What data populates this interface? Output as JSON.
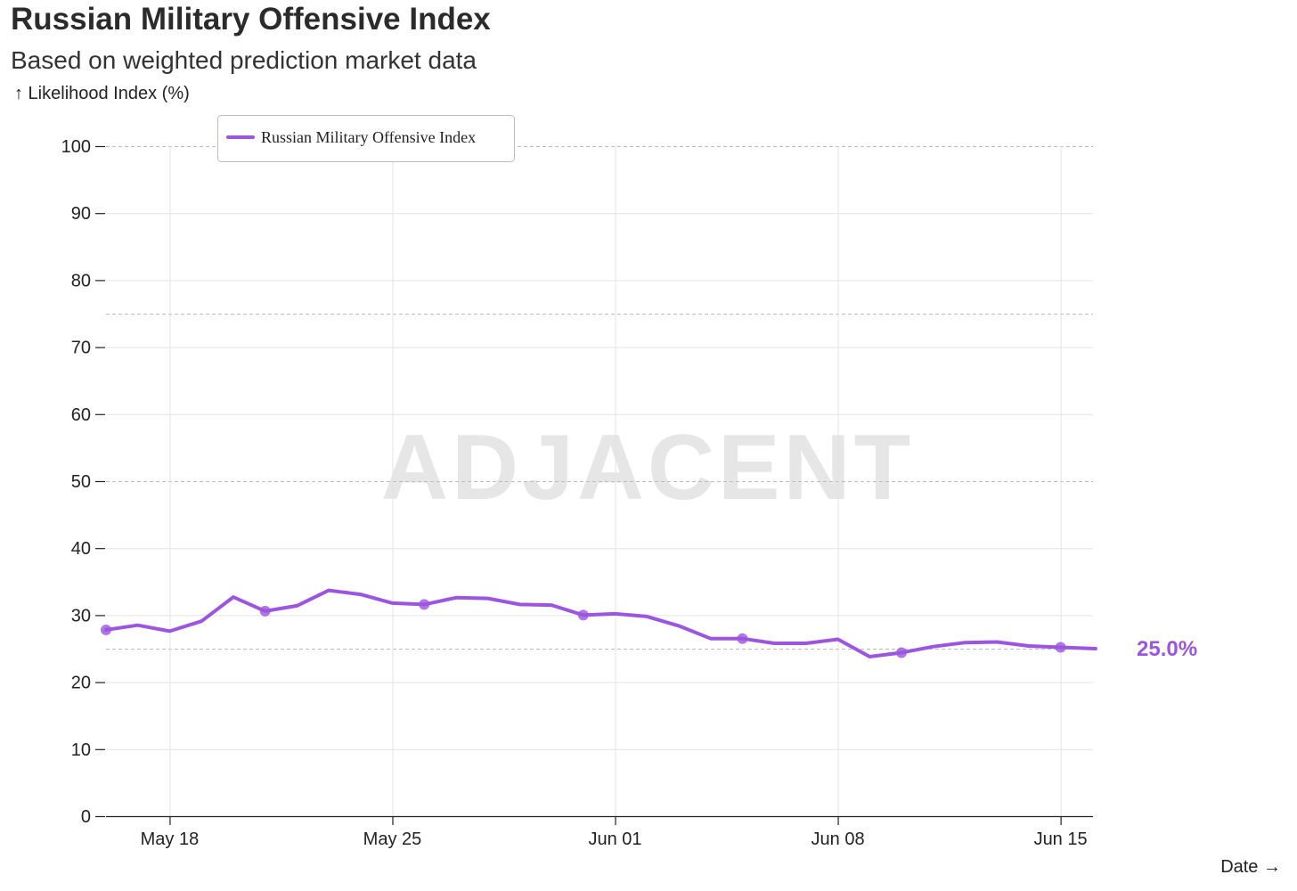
{
  "chart_data": {
    "type": "line",
    "title": "Russian Military Offensive Index",
    "subtitle": "Based on weighted prediction market data",
    "ylabel": "↑ Likelihood Index (%)",
    "xlabel": "Date →",
    "ylim": [
      0,
      100
    ],
    "yticks": [
      "0",
      "10",
      "20",
      "30",
      "40",
      "50",
      "60",
      "70",
      "80",
      "90",
      "100"
    ],
    "ytick_values": [
      0,
      10,
      20,
      30,
      40,
      50,
      60,
      70,
      80,
      90,
      100
    ],
    "reference_lines": [
      25,
      50,
      75,
      100
    ],
    "x_domain_days": [
      0,
      31.1
    ],
    "xticks": [
      {
        "label": "May 18",
        "day": 2
      },
      {
        "label": "May 25",
        "day": 9
      },
      {
        "label": "Jun 01",
        "day": 16
      },
      {
        "label": "Jun 08",
        "day": 23
      },
      {
        "label": "Jun 15",
        "day": 30
      }
    ],
    "legend": "Russian Military Offensive Index",
    "watermark": "ADJACENT",
    "end_label": "25.0%",
    "color": "#9b55e0",
    "series": [
      {
        "name": "Russian Military Offensive Index",
        "days": [
          0,
          1,
          2,
          3,
          4,
          5,
          6,
          7,
          8,
          9,
          10,
          11,
          12,
          13,
          14,
          15,
          16,
          17,
          18,
          19,
          20,
          21,
          22,
          23,
          24,
          25,
          26,
          27,
          28,
          29,
          30,
          31.1
        ],
        "values": [
          27.8,
          28.5,
          27.6,
          29.1,
          32.7,
          30.6,
          31.4,
          33.7,
          33.1,
          31.8,
          31.6,
          32.6,
          32.5,
          31.6,
          31.5,
          30.0,
          30.2,
          29.8,
          28.4,
          26.5,
          26.5,
          25.8,
          25.8,
          26.4,
          23.8,
          24.4,
          25.3,
          25.9,
          26.0,
          25.4,
          25.2,
          25.0
        ],
        "marker_days": [
          0,
          5,
          10,
          15,
          20,
          25,
          30
        ]
      }
    ]
  }
}
